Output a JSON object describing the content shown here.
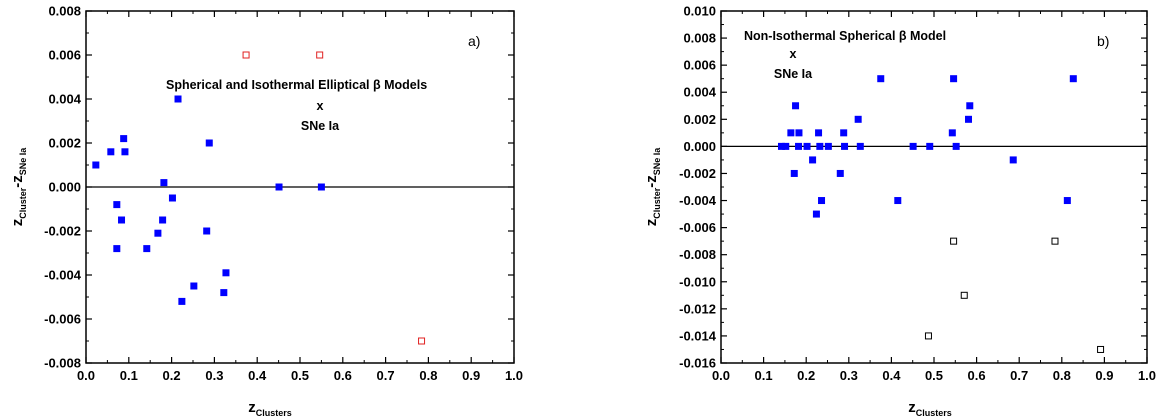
{
  "chart_data": [
    {
      "type": "scatter",
      "panel_label": "a)",
      "xlabel": {
        "main": "z",
        "sub": "Clusters"
      },
      "ylabel": {
        "main1": "z",
        "sub1": "Cluster",
        "main2": "-z",
        "sub2": "SNe Ia"
      },
      "xlim": [
        0.0,
        1.0
      ],
      "ylim": [
        -0.008,
        0.008
      ],
      "x_ticks": [
        "0.0",
        "0.1",
        "0.2",
        "0.3",
        "0.4",
        "0.5",
        "0.6",
        "0.7",
        "0.8",
        "0.9",
        "1.0"
      ],
      "y_ticks": [
        "-0.008",
        "-0.006",
        "-0.004",
        "-0.002",
        "0.000",
        "0.002",
        "0.004",
        "0.006",
        "0.008"
      ],
      "reference_line_y": 0.0,
      "annotations": [
        {
          "text": "Spherical and  Isothermal Elliptical β Models"
        },
        {
          "text": "x"
        },
        {
          "text": "SNe Ia"
        }
      ],
      "series": [
        {
          "marker": "filled-square",
          "color": "#0000ff",
          "points": [
            [
              0.023,
              0.001
            ],
            [
              0.058,
              0.0016
            ],
            [
              0.072,
              -0.0008
            ],
            [
              0.072,
              -0.0028
            ],
            [
              0.083,
              -0.0015
            ],
            [
              0.088,
              0.0022
            ],
            [
              0.091,
              0.0016
            ],
            [
              0.142,
              -0.0028
            ],
            [
              0.168,
              -0.0021
            ],
            [
              0.179,
              -0.0015
            ],
            [
              0.182,
              0.0002
            ],
            [
              0.202,
              -0.0005
            ],
            [
              0.215,
              0.004
            ],
            [
              0.224,
              -0.0052
            ],
            [
              0.252,
              -0.0045
            ],
            [
              0.282,
              -0.002
            ],
            [
              0.288,
              0.002
            ],
            [
              0.322,
              -0.0048
            ],
            [
              0.327,
              -0.0039
            ],
            [
              0.451,
              0.0
            ],
            [
              0.55,
              0.0
            ]
          ]
        },
        {
          "marker": "open-square",
          "color": "#e02020",
          "points": [
            [
              0.374,
              0.006
            ],
            [
              0.546,
              0.006
            ],
            [
              0.784,
              -0.007
            ]
          ]
        }
      ]
    },
    {
      "type": "scatter",
      "panel_label": "b)",
      "xlabel": {
        "main": "z",
        "sub": "Clusters"
      },
      "ylabel": {
        "main1": "z",
        "sub1": "Cluster",
        "main2": "-z",
        "sub2": "SNe Ia"
      },
      "xlim": [
        0.0,
        1.0
      ],
      "ylim": [
        -0.016,
        0.01
      ],
      "x_ticks": [
        "0.0",
        "0.1",
        "0.2",
        "0.3",
        "0.4",
        "0.5",
        "0.6",
        "0.7",
        "0.8",
        "0.9",
        "1.0"
      ],
      "y_ticks": [
        "-0.016",
        "-0.014",
        "-0.012",
        "-0.010",
        "-0.008",
        "-0.006",
        "-0.004",
        "-0.002",
        "0.000",
        "0.002",
        "0.004",
        "0.006",
        "0.008",
        "0.010"
      ],
      "reference_line_y": 0.0,
      "annotations": [
        {
          "text": "Non-Isothermal Spherical β Model"
        },
        {
          "text": "x"
        },
        {
          "text": "SNe Ia"
        }
      ],
      "series": [
        {
          "marker": "filled-square",
          "color": "#0000ff",
          "points": [
            [
              0.142,
              0.0
            ],
            [
              0.152,
              0.0
            ],
            [
              0.164,
              0.001
            ],
            [
              0.172,
              -0.002
            ],
            [
              0.175,
              0.003
            ],
            [
              0.182,
              0.0
            ],
            [
              0.183,
              0.001
            ],
            [
              0.202,
              0.0
            ],
            [
              0.215,
              -0.001
            ],
            [
              0.224,
              -0.005
            ],
            [
              0.229,
              0.001
            ],
            [
              0.232,
              0.0
            ],
            [
              0.236,
              -0.004
            ],
            [
              0.252,
              0.0
            ],
            [
              0.28,
              -0.002
            ],
            [
              0.288,
              0.001
            ],
            [
              0.29,
              0.0
            ],
            [
              0.322,
              0.002
            ],
            [
              0.327,
              0.0
            ],
            [
              0.375,
              0.005
            ],
            [
              0.415,
              -0.004
            ],
            [
              0.451,
              0.0
            ],
            [
              0.49,
              0.0
            ],
            [
              0.543,
              0.001
            ],
            [
              0.546,
              0.005
            ],
            [
              0.552,
              0.0
            ],
            [
              0.581,
              0.002
            ],
            [
              0.584,
              0.003
            ],
            [
              0.686,
              -0.001
            ],
            [
              0.813,
              -0.004
            ],
            [
              0.827,
              0.005
            ]
          ]
        },
        {
          "marker": "open-square",
          "color": "#000000",
          "points": [
            [
              0.487,
              -0.014
            ],
            [
              0.546,
              -0.007
            ],
            [
              0.571,
              -0.011
            ],
            [
              0.784,
              -0.007
            ],
            [
              0.891,
              -0.015
            ]
          ]
        }
      ]
    }
  ]
}
